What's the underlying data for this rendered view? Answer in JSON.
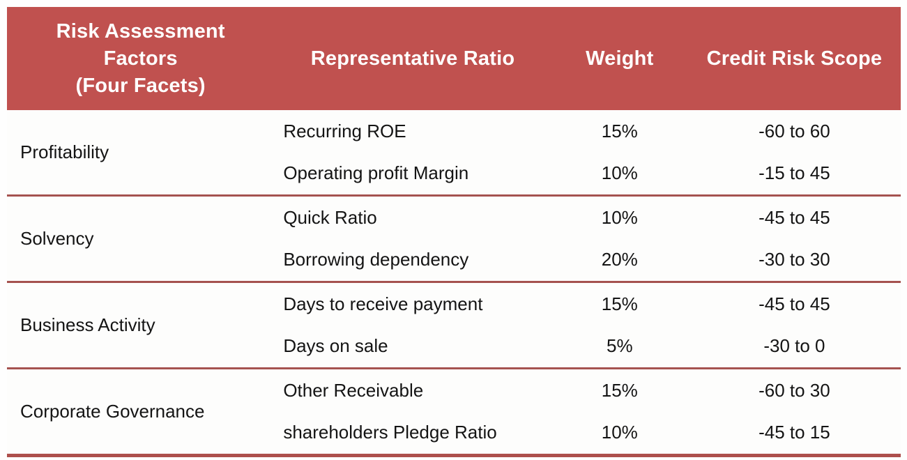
{
  "table": {
    "title_semantic": "Risk assessment factor weighting table",
    "colors": {
      "header_bg": "#c0514f",
      "header_text": "#ffffff",
      "group_separator": "#a5524f",
      "bottom_border": "#ad4f4c",
      "body_text": "#141414"
    },
    "header": {
      "factors_lines": [
        "Risk Assessment",
        "Factors",
        "(Four Facets)"
      ],
      "ratio": "Representative Ratio",
      "weight": "Weight",
      "scope": "Credit Risk Scope"
    },
    "groups": [
      {
        "factor": "Profitability",
        "rows": [
          {
            "ratio": "Recurring ROE",
            "weight": "15%",
            "scope": "-60 to 60"
          },
          {
            "ratio": "Operating profit Margin",
            "weight": "10%",
            "scope": "-15 to 45"
          }
        ]
      },
      {
        "factor": "Solvency",
        "rows": [
          {
            "ratio": "Quick Ratio",
            "weight": "10%",
            "scope": "-45 to 45"
          },
          {
            "ratio": "Borrowing dependency",
            "weight": "20%",
            "scope": "-30 to 30"
          }
        ]
      },
      {
        "factor": "Business Activity",
        "rows": [
          {
            "ratio": "Days to receive payment",
            "weight": "15%",
            "scope": "-45 to 45"
          },
          {
            "ratio": "Days on sale",
            "weight": "5%",
            "scope": "-30 to 0"
          }
        ]
      },
      {
        "factor": "Corporate Governance",
        "rows": [
          {
            "ratio": "Other Receivable",
            "weight": "15%",
            "scope": "-60 to 30"
          },
          {
            "ratio": "shareholders Pledge Ratio",
            "weight": "10%",
            "scope": "-45 to 15"
          }
        ]
      }
    ]
  }
}
